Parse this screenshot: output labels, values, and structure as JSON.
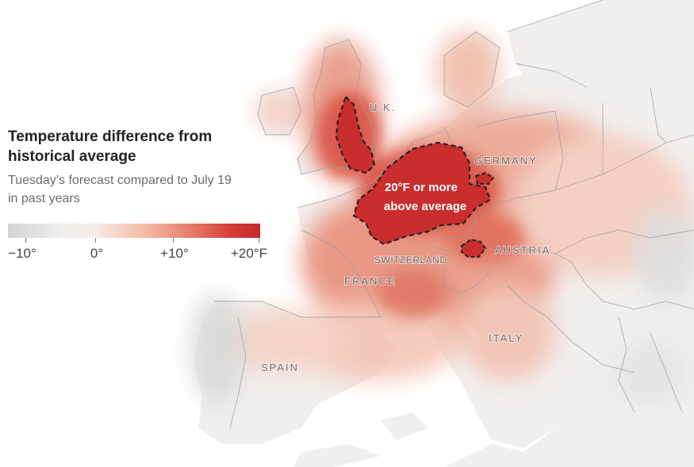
{
  "legend": {
    "title": "Temperature difference from historical average",
    "subtitle": "Tuesday’s forecast compared to July 19 in past years",
    "scale_ticks": [
      "−10°",
      "0°",
      "+10°",
      "+20°F"
    ],
    "scale_colors": {
      "cold": "#d4d4d4",
      "neutral": "#f3f0ee",
      "warm": "#f4b9a2",
      "hot": "#c8282b"
    }
  },
  "annotation": {
    "line1": "20°F or more",
    "line2": "above average"
  },
  "labels": {
    "uk": "U.K.",
    "germany": "GERMANY",
    "switzerland": "SWITZERLAND",
    "austria": "AUSTRIA",
    "france": "FRANCE",
    "italy": "ITALY",
    "spain": "SPAIN"
  },
  "colors": {
    "sea": "#ffffff",
    "land": "#f2f2f2",
    "border": "#9a9a9a",
    "hot_zone_outline": "#222222",
    "hot_zone_fill": "#c8282b"
  }
}
